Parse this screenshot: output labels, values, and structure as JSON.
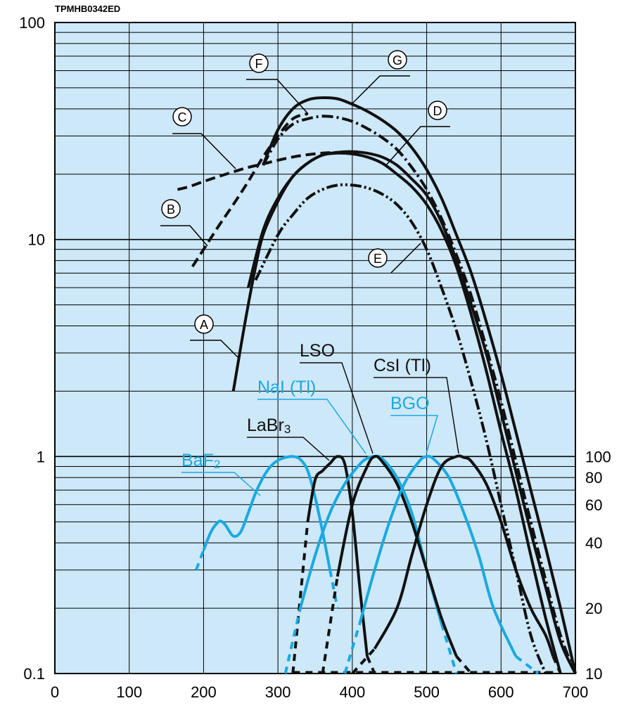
{
  "figure_code": "TPMHB0342ED",
  "colors": {
    "plot_background": "#cde8f8",
    "grid": "#000000",
    "photocathode_curves": "#111111",
    "scintillator_black": "#111111",
    "scintillator_blue": "#1ba9e0"
  },
  "chart_data": {
    "type": "line",
    "title": "",
    "xlabel": "",
    "ylabel": "",
    "xlim": [
      0,
      700
    ],
    "ylim": [
      0.1,
      100
    ],
    "y_scale": "log",
    "grid": true,
    "x_ticks": [
      "0",
      "100",
      "200",
      "300",
      "400",
      "500",
      "600",
      "700"
    ],
    "y_ticks": [
      "100",
      "10",
      "1",
      "0.1"
    ],
    "y2_ticks": [
      "100",
      "80",
      "60",
      "40",
      "20",
      "10"
    ],
    "photocathode_curves": [
      {
        "label": "A",
        "style": "solid",
        "x": [
          240,
          250,
          260,
          270,
          280,
          300,
          320,
          340,
          360,
          380,
          400,
          420,
          440,
          460,
          480,
          500,
          520,
          540,
          560,
          580,
          600,
          620,
          640,
          660,
          680
        ],
        "y": [
          2.0,
          3.2,
          5.0,
          7.5,
          10.5,
          15.0,
          19.5,
          22.5,
          24.5,
          25.0,
          24.8,
          24.0,
          22.5,
          20.0,
          17.5,
          14.5,
          11.0,
          7.5,
          4.5,
          2.5,
          1.3,
          0.7,
          0.35,
          0.18,
          0.1
        ]
      },
      {
        "label": "B",
        "style": "dashed",
        "x": [
          185,
          200,
          220,
          240,
          260,
          280,
          300,
          320,
          340
        ],
        "y": [
          7.5,
          9.0,
          11.5,
          14.5,
          18.5,
          24.0,
          30.0,
          36.0,
          38.0
        ]
      },
      {
        "label": "C",
        "style": "dashed",
        "x": [
          165,
          180,
          200,
          220,
          240,
          260,
          280,
          300,
          320,
          340,
          360,
          380,
          400
        ],
        "y": [
          17.0,
          17.5,
          18.5,
          19.5,
          20.5,
          21.5,
          22.3,
          23.2,
          24.0,
          24.6,
          25.0,
          25.2,
          25.3
        ]
      },
      {
        "label": "D",
        "style": "solid",
        "x": [
          260,
          280,
          300,
          320,
          340,
          360,
          380,
          400,
          420,
          440,
          460,
          480,
          500,
          520,
          540,
          560,
          580,
          600,
          620,
          640,
          660,
          680,
          700
        ],
        "y": [
          6.0,
          11.0,
          15.5,
          19.5,
          22.5,
          24.5,
          25.2,
          25.4,
          25.0,
          24.0,
          22.0,
          19.0,
          16.0,
          12.0,
          8.0,
          5.0,
          3.0,
          1.6,
          0.85,
          0.45,
          0.25,
          0.14,
          0.1
        ]
      },
      {
        "label": "E",
        "style": "dash-dot-dot",
        "x": [
          270,
          300,
          320,
          340,
          360,
          380,
          400,
          420,
          440,
          460,
          480,
          500,
          520,
          540,
          560,
          580,
          600,
          620,
          640,
          660
        ],
        "y": [
          6.5,
          10.5,
          13.0,
          15.5,
          17.0,
          17.8,
          17.8,
          17.3,
          16.2,
          14.5,
          12.0,
          9.0,
          6.0,
          3.8,
          2.2,
          1.2,
          0.6,
          0.3,
          0.15,
          0.1
        ]
      },
      {
        "label": "F",
        "style": "dash-dot",
        "x": [
          280,
          300,
          320,
          340,
          360,
          380,
          400,
          420,
          440,
          460,
          480,
          500,
          520,
          540,
          560,
          580,
          600,
          620,
          640,
          660,
          680,
          700
        ],
        "y": [
          22.0,
          29.0,
          34.0,
          36.0,
          37.0,
          36.5,
          35.0,
          32.5,
          29.5,
          26.0,
          21.5,
          17.0,
          12.5,
          8.5,
          5.5,
          3.2,
          1.8,
          0.95,
          0.5,
          0.27,
          0.15,
          0.1
        ]
      },
      {
        "label": "G",
        "style": "solid",
        "x": [
          280,
          300,
          320,
          340,
          360,
          380,
          400,
          420,
          440,
          460,
          480,
          500,
          520,
          540,
          560,
          580,
          600,
          620,
          640,
          660,
          680,
          700
        ],
        "y": [
          22.0,
          32.0,
          40.0,
          44.0,
          45.0,
          44.5,
          42.0,
          39.0,
          35.5,
          31.5,
          26.5,
          21.0,
          15.5,
          10.5,
          7.0,
          4.2,
          2.4,
          1.3,
          0.7,
          0.38,
          0.2,
          0.1
        ]
      }
    ],
    "scintillator_curves": [
      {
        "label": "BaF2",
        "color": "blue",
        "x": [
          190,
          200,
          210,
          220,
          225,
          230,
          240,
          250,
          260,
          270,
          280,
          290,
          300,
          310,
          320,
          330,
          340,
          350,
          360,
          370,
          380
        ],
        "y": [
          0.3,
          0.37,
          0.45,
          0.5,
          0.5,
          0.48,
          0.43,
          0.45,
          0.55,
          0.68,
          0.8,
          0.9,
          0.96,
          0.99,
          1.0,
          0.97,
          0.86,
          0.65,
          0.45,
          0.3,
          0.2
        ]
      },
      {
        "label": "LaBr3",
        "color": "black",
        "x": [
          320,
          340,
          350,
          360,
          370,
          380,
          390,
          400,
          410,
          420,
          430
        ],
        "y": [
          0.1,
          0.5,
          0.78,
          0.86,
          0.93,
          1.0,
          0.92,
          0.55,
          0.25,
          0.12,
          0.1
        ]
      },
      {
        "label": "NaI (Tl)",
        "color": "blue",
        "x": [
          310,
          330,
          350,
          370,
          390,
          410,
          420,
          430,
          440,
          460,
          480,
          500,
          520,
          540
        ],
        "y": [
          0.1,
          0.2,
          0.35,
          0.55,
          0.75,
          0.92,
          0.98,
          1.0,
          0.98,
          0.8,
          0.55,
          0.3,
          0.17,
          0.1
        ]
      },
      {
        "label": "LSO",
        "color": "black",
        "x": [
          360,
          380,
          400,
          420,
          430,
          440,
          460,
          480,
          500,
          520,
          540,
          560
        ],
        "y": [
          0.1,
          0.28,
          0.6,
          0.9,
          1.0,
          0.95,
          0.75,
          0.5,
          0.3,
          0.18,
          0.12,
          0.1
        ]
      },
      {
        "label": "BGO",
        "color": "blue",
        "x": [
          390,
          410,
          430,
          450,
          470,
          490,
          500,
          510,
          530,
          550,
          570,
          590,
          620,
          650
        ],
        "y": [
          0.1,
          0.17,
          0.3,
          0.5,
          0.75,
          0.95,
          1.0,
          0.97,
          0.8,
          0.55,
          0.35,
          0.2,
          0.12,
          0.1
        ]
      },
      {
        "label": "CsI (Tl)",
        "color": "black",
        "x": [
          400,
          430,
          460,
          480,
          500,
          520,
          540,
          550,
          560,
          580,
          600,
          620,
          640,
          660,
          670,
          680
        ],
        "y": [
          0.1,
          0.13,
          0.2,
          0.35,
          0.6,
          0.9,
          1.0,
          0.99,
          0.95,
          0.75,
          0.5,
          0.3,
          0.2,
          0.15,
          0.12,
          0.1
        ]
      }
    ],
    "scintillator_baseline": {
      "style": "dashed",
      "y": 0.1,
      "x_start": 320,
      "x_end": 680
    }
  }
}
